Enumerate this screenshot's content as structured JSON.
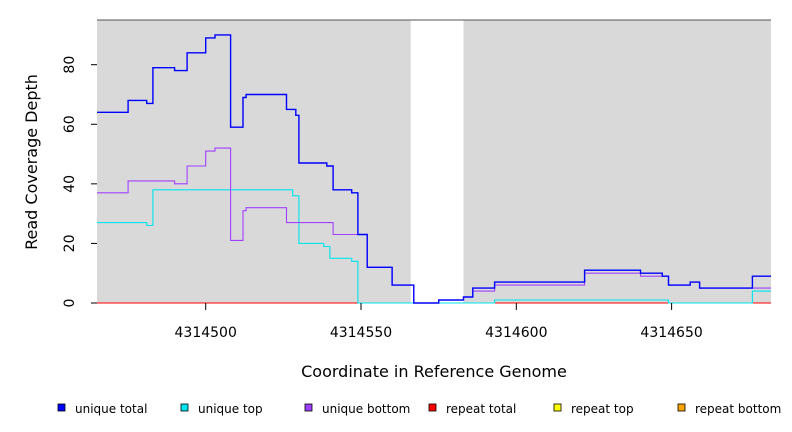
{
  "chart_data": {
    "type": "line",
    "step": true,
    "title": "",
    "xlabel": "Coordinate in Reference Genome",
    "ylabel": "Read Coverage Depth",
    "xlim": [
      4314465,
      4314682
    ],
    "ylim": [
      0,
      95
    ],
    "x_ticks": [
      4314500,
      4314550,
      4314600,
      4314650
    ],
    "x_tick_labels": [
      "4314500",
      "4314550",
      "4314600",
      "4314650"
    ],
    "y_ticks": [
      0,
      20,
      40,
      60,
      80
    ],
    "y_tick_labels": [
      "0",
      "20",
      "40",
      "60",
      "80"
    ],
    "shaded_regions": [
      {
        "from": 4314465,
        "to": 4314566,
        "color": "#d9d9d9"
      },
      {
        "from": 4314583,
        "to": 4314682,
        "color": "#d9d9d9"
      }
    ],
    "legend_position": "bottom",
    "series": [
      {
        "name": "unique total",
        "color": "#0000ff",
        "steps": [
          [
            4314465,
            64
          ],
          [
            4314475,
            68
          ],
          [
            4314481,
            67
          ],
          [
            4314483,
            79
          ],
          [
            4314490,
            78
          ],
          [
            4314494,
            84
          ],
          [
            4314500,
            89
          ],
          [
            4314503,
            90
          ],
          [
            4314508,
            59
          ],
          [
            4314512,
            69
          ],
          [
            4314513,
            70
          ],
          [
            4314526,
            65
          ],
          [
            4314529,
            63
          ],
          [
            4314530,
            47
          ],
          [
            4314539,
            46
          ],
          [
            4314541,
            38
          ],
          [
            4314547,
            37
          ],
          [
            4314549,
            23
          ],
          [
            4314552,
            12
          ],
          [
            4314560,
            6
          ],
          [
            4314567,
            0
          ],
          [
            4314575,
            1
          ],
          [
            4314583,
            2
          ],
          [
            4314586,
            5
          ],
          [
            4314593,
            7
          ],
          [
            4314622,
            11
          ],
          [
            4314640,
            10
          ],
          [
            4314647,
            9
          ],
          [
            4314649,
            6
          ],
          [
            4314656,
            7
          ],
          [
            4314659,
            5
          ],
          [
            4314676,
            9
          ]
        ],
        "x_end": 4314682
      },
      {
        "name": "unique top",
        "color": "#00e5ee",
        "steps": [
          [
            4314465,
            27
          ],
          [
            4314481,
            26
          ],
          [
            4314483,
            38
          ],
          [
            4314528,
            36
          ],
          [
            4314530,
            20
          ],
          [
            4314538,
            19
          ],
          [
            4314540,
            15
          ],
          [
            4314547,
            14
          ],
          [
            4314549,
            0
          ],
          [
            4314593,
            1
          ],
          [
            4314649,
            0
          ],
          [
            4314676,
            4
          ]
        ],
        "x_end": 4314682
      },
      {
        "name": "unique bottom",
        "color": "#a040ff",
        "steps": [
          [
            4314465,
            37
          ],
          [
            4314475,
            41
          ],
          [
            4314490,
            40
          ],
          [
            4314494,
            46
          ],
          [
            4314500,
            51
          ],
          [
            4314503,
            52
          ],
          [
            4314508,
            21
          ],
          [
            4314512,
            31
          ],
          [
            4314513,
            32
          ],
          [
            4314526,
            27
          ],
          [
            4314541,
            23
          ],
          [
            4314552,
            12
          ],
          [
            4314560,
            6
          ],
          [
            4314567,
            0
          ],
          [
            4314575,
            1
          ],
          [
            4314583,
            2
          ],
          [
            4314586,
            4
          ],
          [
            4314593,
            6
          ],
          [
            4314622,
            10
          ],
          [
            4314640,
            9
          ],
          [
            4314647,
            9
          ],
          [
            4314649,
            6
          ],
          [
            4314656,
            7
          ],
          [
            4314659,
            5
          ],
          [
            4314676,
            5
          ]
        ],
        "x_end": 4314682
      },
      {
        "name": "repeat total",
        "color": "#ff0000",
        "steps": [
          [
            4314465,
            0
          ]
        ],
        "x_end": 4314682
      },
      {
        "name": "repeat top",
        "color": "#ffff00",
        "steps": [
          [
            4314465,
            0
          ]
        ],
        "x_end": 4314682
      },
      {
        "name": "repeat bottom",
        "color": "#ffa500",
        "steps": [
          [
            4314465,
            0
          ]
        ],
        "x_end": 4314682
      }
    ]
  }
}
